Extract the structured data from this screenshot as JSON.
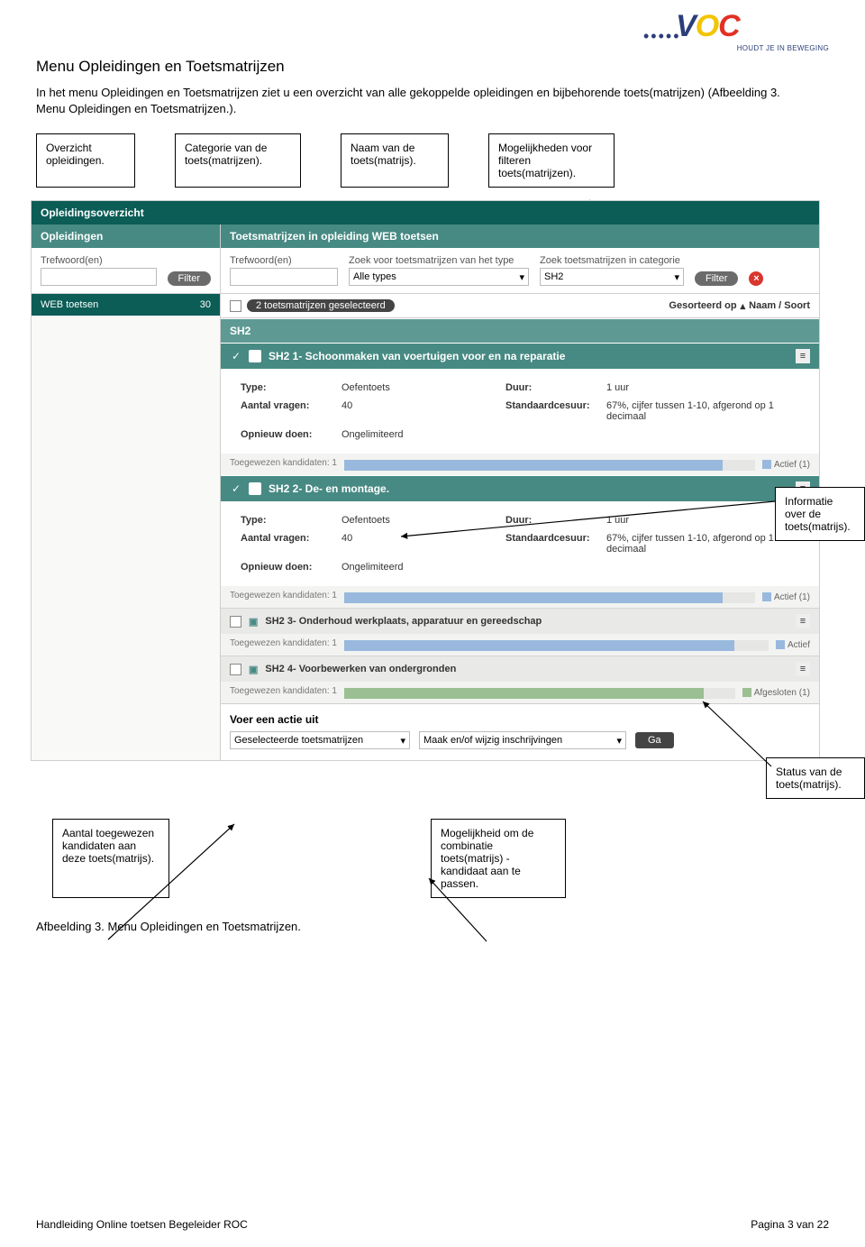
{
  "logo": {
    "dots": "•••••",
    "main": "VOC",
    "sub": "HOUDT JE IN BEWEGING",
    "colors": {
      "blue": "#2c3e78",
      "yellow": "#f3c400",
      "red": "#e33024"
    }
  },
  "title": "Menu Opleidingen en Toetsmatrijzen",
  "intro": "In het menu Opleidingen en Toetsmatrijzen ziet u een overzicht van alle gekoppelde opleidingen en bijbehorende toets(matrijzen) (Afbeelding 3. Menu Opleidingen en Toetsmatrijzen.).",
  "callouts_top": [
    "Overzicht opleidingen.",
    "Categorie van de toets(matrijzen).",
    "Naam van de toets(matrijs).",
    "Mogelijkheden voor filteren toets(matrijzen)."
  ],
  "side_callouts": {
    "info": "Informatie over de toets(matrijs).",
    "status": "Status van de toets(matrijs)."
  },
  "bottom_callouts": [
    "Aantal toegewezen kandidaten aan deze toets(matrijs).",
    "Mogelijkheid om de combinatie toets(matrijs) - kandidaat aan te passen."
  ],
  "caption": "Afbeelding 3. Menu Opleidingen en Toetsmatrijzen.",
  "footer": {
    "left": "Handleiding Online toetsen Begeleider ROC",
    "right": "Pagina 3 van 22"
  },
  "ui": {
    "top_bar": "Opleidingsoverzicht",
    "left_tab": "Opleidingen",
    "right_tab": "Toetsmatrijzen in opleiding WEB toetsen",
    "left_filter": {
      "label": "Trefwoord(en)",
      "button": "Filter"
    },
    "right_filter": {
      "trefwoord_label": "Trefwoord(en)",
      "type_label": "Zoek voor toetsmatrijzen van het type",
      "type_value": "Alle types",
      "cat_label": "Zoek toetsmatrijzen in categorie",
      "cat_value": "SH2",
      "button": "Filter"
    },
    "left_list": {
      "name": "WEB toetsen",
      "count": "30"
    },
    "sel_bar": {
      "text": "2 toetsmatrijzen geselecteerd",
      "sort_label": "Gesorteerd op",
      "sort_value": "Naam / Soort"
    },
    "category": "SH2",
    "items": [
      {
        "checked": true,
        "title": "SH2 1- Schoonmaken van voertuigen voor en na reparatie",
        "type": "Oefentoets",
        "vragen": "40",
        "opnieuw": "Ongelimiteerd",
        "duur": "1 uur",
        "cesuur": "67%, cijfer tussen 1-10, afgerond op 1 decimaal",
        "assigned": "Toegewezen kandidaten: 1",
        "status": "Actief (1)",
        "status_color": "#98b9dd",
        "fill_pct": 92
      },
      {
        "checked": true,
        "title": "SH2 2- De- en montage.",
        "type": "Oefentoets",
        "vragen": "40",
        "opnieuw": "Ongelimiteerd",
        "duur": "1 uur",
        "cesuur": "67%, cijfer tussen 1-10, afgerond op 1 decimaal",
        "assigned": "Toegewezen kandidaten: 1",
        "status": "Actief (1)",
        "status_color": "#98b9dd",
        "fill_pct": 92
      },
      {
        "checked": false,
        "title": "SH2 3- Onderhoud werkplaats, apparatuur en gereedschap",
        "assigned": "Toegewezen kandidaten: 1",
        "status": "Actief",
        "status_color": "#98b9dd",
        "fill_pct": 92
      },
      {
        "checked": false,
        "title": "SH2 4- Voorbewerken van ondergronden",
        "assigned": "Toegewezen kandidaten: 1",
        "status": "Afgesloten (1)",
        "status_color": "#9bbf93",
        "fill_pct": 92
      }
    ],
    "labels": {
      "type": "Type:",
      "vragen": "Aantal vragen:",
      "opnieuw": "Opnieuw doen:",
      "duur": "Duur:",
      "cesuur": "Standaardcesuur:"
    },
    "action": {
      "head": "Voer een actie uit",
      "sel1": "Geselecteerde toetsmatrijzen",
      "sel2": "Maak en/of wijzig inschrijvingen",
      "go": "Ga"
    }
  }
}
